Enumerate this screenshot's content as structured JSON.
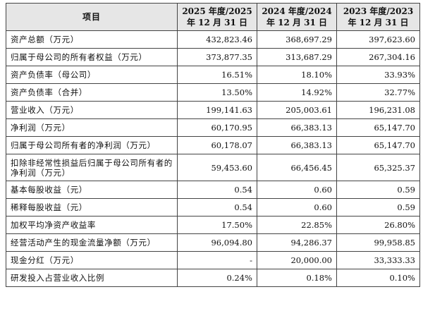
{
  "table": {
    "header": {
      "item": "项目",
      "columns": [
        {
          "line1": "2025 年度/2025",
          "line2": "年 12 月 31 日"
        },
        {
          "line1": "2024 年度/2024",
          "line2": "年 12 月 31 日"
        },
        {
          "line1": "2023 年度/2023",
          "line2": "年 12 月 31 日"
        }
      ]
    },
    "rows": [
      {
        "label": "资产总额（万元）",
        "values": [
          "432,823.46",
          "368,697.29",
          "397,623.60"
        ]
      },
      {
        "label": "归属于母公司的所有者权益（万元）",
        "values": [
          "373,877.35",
          "313,687.29",
          "267,304.16"
        ]
      },
      {
        "label": "资产负债率（母公司）",
        "values": [
          "16.51%",
          "18.10%",
          "33.93%"
        ]
      },
      {
        "label": "资产负债率（合并）",
        "values": [
          "13.50%",
          "14.92%",
          "32.77%"
        ]
      },
      {
        "label": "营业收入（万元）",
        "values": [
          "199,141.63",
          "205,003.61",
          "196,231.08"
        ]
      },
      {
        "label": "净利润（万元）",
        "values": [
          "60,170.95",
          "66,383.13",
          "65,147.70"
        ]
      },
      {
        "label": "归属于母公司所有者的净利润（万元）",
        "values": [
          "60,178.07",
          "66,383.13",
          "65,147.70"
        ]
      },
      {
        "label": "扣除非经常性损益后归属于母公司所有者的净利润（万元）",
        "values": [
          "59,453.60",
          "66,456.45",
          "65,325.37"
        ]
      },
      {
        "label": "基本每股收益（元）",
        "values": [
          "0.54",
          "0.60",
          "0.59"
        ]
      },
      {
        "label": "稀释每股收益（元）",
        "values": [
          "0.54",
          "0.60",
          "0.59"
        ]
      },
      {
        "label": "加权平均净资产收益率",
        "values": [
          "17.50%",
          "22.85%",
          "26.80%"
        ]
      },
      {
        "label": "经营活动产生的现金流量净额（万元）",
        "values": [
          "96,094.80",
          "94,286.37",
          "99,958.85"
        ]
      },
      {
        "label": "现金分红（万元）",
        "values": [
          "-",
          "20,000.00",
          "33,333.33"
        ]
      },
      {
        "label": "研发投入占营业收入比例",
        "values": [
          "0.24%",
          "0.18%",
          "0.10%"
        ]
      }
    ]
  }
}
